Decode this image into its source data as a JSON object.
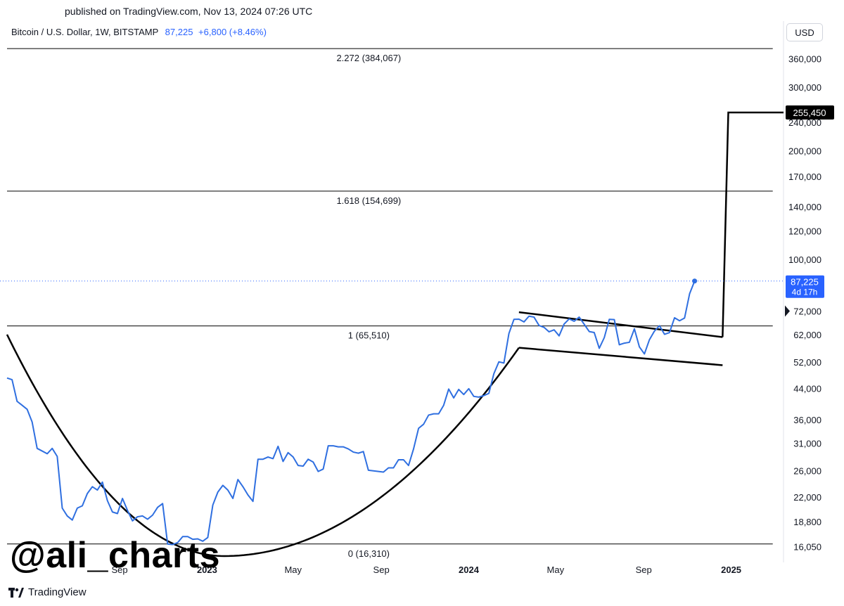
{
  "header": {
    "published": "published on TradingView.com, Nov 13, 2024 07:26 UTC"
  },
  "legend": {
    "symbol": "Bitcoin / U.S. Dollar, 1W, BITSTAMP",
    "price": "87,225",
    "change": "+6,800 (+8.46%)"
  },
  "currency_label": "USD",
  "watermark": "@ali_charts",
  "footer": {
    "brand": "TradingView"
  },
  "colors": {
    "series": "#2f6fe0",
    "accent": "#2962ff",
    "lines": "#000000"
  },
  "chart_data": {
    "type": "line",
    "y_scale": "log",
    "ylim": [
      14500,
      400000
    ],
    "y_ticks": [
      {
        "value": 360000,
        "label": "360,000"
      },
      {
        "value": 300000,
        "label": "300,000"
      },
      {
        "value": 240000,
        "label": "240,000"
      },
      {
        "value": 200000,
        "label": "200,000"
      },
      {
        "value": 170000,
        "label": "170,000"
      },
      {
        "value": 140000,
        "label": "140,000"
      },
      {
        "value": 120000,
        "label": "120,000"
      },
      {
        "value": 100000,
        "label": "100,000"
      },
      {
        "value": 72000,
        "label": "72,000"
      },
      {
        "value": 62000,
        "label": "62,000"
      },
      {
        "value": 52000,
        "label": "52,000"
      },
      {
        "value": 44000,
        "label": "44,000"
      },
      {
        "value": 36000,
        "label": "36,000"
      },
      {
        "value": 31000,
        "label": "31,000"
      },
      {
        "value": 26000,
        "label": "26,000"
      },
      {
        "value": 22000,
        "label": "22,000"
      },
      {
        "value": 18800,
        "label": "18,800"
      },
      {
        "value": 16050,
        "label": "16,050"
      }
    ],
    "x_range": [
      "2022-03-28",
      "2025-03-15"
    ],
    "x_ticks": [
      {
        "date": "2022-09-01",
        "label": "Sep",
        "bold": false
      },
      {
        "date": "2023-01-01",
        "label": "2023",
        "bold": true
      },
      {
        "date": "2023-05-01",
        "label": "May",
        "bold": false
      },
      {
        "date": "2023-09-01",
        "label": "Sep",
        "bold": false
      },
      {
        "date": "2024-01-01",
        "label": "2024",
        "bold": true
      },
      {
        "date": "2024-05-01",
        "label": "May",
        "bold": false
      },
      {
        "date": "2024-09-01",
        "label": "Sep",
        "bold": false
      },
      {
        "date": "2025-01-01",
        "label": "2025",
        "bold": true
      }
    ],
    "series": [
      {
        "values": [
          [
            "2022-03-28",
            47000
          ],
          [
            "2022-04-04",
            46500
          ],
          [
            "2022-04-11",
            40500
          ],
          [
            "2022-04-18",
            39500
          ],
          [
            "2022-04-25",
            38500
          ],
          [
            "2022-05-02",
            35500
          ],
          [
            "2022-05-09",
            30000
          ],
          [
            "2022-05-16",
            29500
          ],
          [
            "2022-05-23",
            29000
          ],
          [
            "2022-05-30",
            30000
          ],
          [
            "2022-06-06",
            28500
          ],
          [
            "2022-06-13",
            20500
          ],
          [
            "2022-06-20",
            19500
          ],
          [
            "2022-06-27",
            19000
          ],
          [
            "2022-07-04",
            20500
          ],
          [
            "2022-07-11",
            20800
          ],
          [
            "2022-07-18",
            22500
          ],
          [
            "2022-07-25",
            23500
          ],
          [
            "2022-08-01",
            23000
          ],
          [
            "2022-08-08",
            24200
          ],
          [
            "2022-08-15",
            21500
          ],
          [
            "2022-08-22",
            20000
          ],
          [
            "2022-08-29",
            19800
          ],
          [
            "2022-09-05",
            21800
          ],
          [
            "2022-09-12",
            20200
          ],
          [
            "2022-09-19",
            18900
          ],
          [
            "2022-09-26",
            19400
          ],
          [
            "2022-10-03",
            19500
          ],
          [
            "2022-10-10",
            19100
          ],
          [
            "2022-10-17",
            19600
          ],
          [
            "2022-10-24",
            20600
          ],
          [
            "2022-10-31",
            21100
          ],
          [
            "2022-11-07",
            16300
          ],
          [
            "2022-11-14",
            16250
          ],
          [
            "2022-11-21",
            16450
          ],
          [
            "2022-11-28",
            17100
          ],
          [
            "2022-12-05",
            17100
          ],
          [
            "2022-12-12",
            16800
          ],
          [
            "2022-12-19",
            16850
          ],
          [
            "2022-12-26",
            16600
          ],
          [
            "2023-01-02",
            17000
          ],
          [
            "2023-01-09",
            20900
          ],
          [
            "2023-01-16",
            22700
          ],
          [
            "2023-01-23",
            23700
          ],
          [
            "2023-01-30",
            23000
          ],
          [
            "2023-02-06",
            21800
          ],
          [
            "2023-02-13",
            24600
          ],
          [
            "2023-02-20",
            23500
          ],
          [
            "2023-02-27",
            22300
          ],
          [
            "2023-03-06",
            21400
          ],
          [
            "2023-03-13",
            28000
          ],
          [
            "2023-03-20",
            28000
          ],
          [
            "2023-03-27",
            28400
          ],
          [
            "2023-04-03",
            28100
          ],
          [
            "2023-04-10",
            30400
          ],
          [
            "2023-04-17",
            27600
          ],
          [
            "2023-04-24",
            29200
          ],
          [
            "2023-05-01",
            28400
          ],
          [
            "2023-05-08",
            26900
          ],
          [
            "2023-05-15",
            26800
          ],
          [
            "2023-05-22",
            28000
          ],
          [
            "2023-05-29",
            27500
          ],
          [
            "2023-06-05",
            25900
          ],
          [
            "2023-06-12",
            26300
          ],
          [
            "2023-06-19",
            30500
          ],
          [
            "2023-06-26",
            30500
          ],
          [
            "2023-07-03",
            30300
          ],
          [
            "2023-07-10",
            30300
          ],
          [
            "2023-07-17",
            29900
          ],
          [
            "2023-07-24",
            29300
          ],
          [
            "2023-07-31",
            29100
          ],
          [
            "2023-08-07",
            29400
          ],
          [
            "2023-08-14",
            26100
          ],
          [
            "2023-08-21",
            26000
          ],
          [
            "2023-08-28",
            25900
          ],
          [
            "2023-09-04",
            25800
          ],
          [
            "2023-09-11",
            26500
          ],
          [
            "2023-09-18",
            26500
          ],
          [
            "2023-09-25",
            27900
          ],
          [
            "2023-10-02",
            27900
          ],
          [
            "2023-10-09",
            26900
          ],
          [
            "2023-10-16",
            29900
          ],
          [
            "2023-10-23",
            34100
          ],
          [
            "2023-10-30",
            35000
          ],
          [
            "2023-11-06",
            37100
          ],
          [
            "2023-11-13",
            37400
          ],
          [
            "2023-11-20",
            37400
          ],
          [
            "2023-11-27",
            39500
          ],
          [
            "2023-12-04",
            43800
          ],
          [
            "2023-12-11",
            41400
          ],
          [
            "2023-12-18",
            43700
          ],
          [
            "2023-12-25",
            42300
          ],
          [
            "2024-01-01",
            43900
          ],
          [
            "2024-01-08",
            41800
          ],
          [
            "2024-01-15",
            41600
          ],
          [
            "2024-01-22",
            42000
          ],
          [
            "2024-01-29",
            42600
          ],
          [
            "2024-02-05",
            48300
          ],
          [
            "2024-02-12",
            52100
          ],
          [
            "2024-02-19",
            51700
          ],
          [
            "2024-02-26",
            62400
          ],
          [
            "2024-03-04",
            68300
          ],
          [
            "2024-03-11",
            68400
          ],
          [
            "2024-03-18",
            67200
          ],
          [
            "2024-03-25",
            69700
          ],
          [
            "2024-04-01",
            69300
          ],
          [
            "2024-04-08",
            65700
          ],
          [
            "2024-04-15",
            64900
          ],
          [
            "2024-04-22",
            63100
          ],
          [
            "2024-04-29",
            63900
          ],
          [
            "2024-05-06",
            61500
          ],
          [
            "2024-05-13",
            66300
          ],
          [
            "2024-05-20",
            68500
          ],
          [
            "2024-05-27",
            67500
          ],
          [
            "2024-06-03",
            69300
          ],
          [
            "2024-06-10",
            66200
          ],
          [
            "2024-06-17",
            63200
          ],
          [
            "2024-06-24",
            62800
          ],
          [
            "2024-07-01",
            56800
          ],
          [
            "2024-07-08",
            60800
          ],
          [
            "2024-07-15",
            68300
          ],
          [
            "2024-07-22",
            68200
          ],
          [
            "2024-07-29",
            58100
          ],
          [
            "2024-08-05",
            58700
          ],
          [
            "2024-08-12",
            59000
          ],
          [
            "2024-08-19",
            64300
          ],
          [
            "2024-08-26",
            57300
          ],
          [
            "2024-09-02",
            54800
          ],
          [
            "2024-09-09",
            60000
          ],
          [
            "2024-09-16",
            63400
          ],
          [
            "2024-09-23",
            65600
          ],
          [
            "2024-09-30",
            62100
          ],
          [
            "2024-10-07",
            62800
          ],
          [
            "2024-10-14",
            69000
          ],
          [
            "2024-10-21",
            67700
          ],
          [
            "2024-10-28",
            68900
          ],
          [
            "2024-11-04",
            80400
          ],
          [
            "2024-11-11",
            87225
          ]
        ]
      }
    ],
    "last_point": {
      "date": "2024-11-11",
      "value": 87225
    },
    "current_price_label": {
      "value": "87,225",
      "countdown": "4d 17h"
    },
    "fib_levels": [
      {
        "value": 384067,
        "label": "2.272 (384,067)"
      },
      {
        "value": 154699,
        "label": "1.618 (154,699)"
      },
      {
        "value": 65510,
        "label": "1 (65,510)"
      },
      {
        "value": 16310,
        "label": "0 (16,310)"
      }
    ],
    "fib_x_range": [
      "2022-03-28",
      "2025-02-28"
    ],
    "target": {
      "value": 255450,
      "label": "255,450"
    },
    "cup": {
      "left": {
        "date": "2022-03-28",
        "value": 62000
      },
      "bottom": {
        "date": "2023-01-25",
        "value": 15100
      },
      "right": {
        "date": "2024-03-11",
        "value": 57000
      }
    },
    "handle": {
      "upper": [
        {
          "date": "2024-03-11",
          "value": 71500
        },
        {
          "date": "2024-12-20",
          "value": 61000
        }
      ],
      "lower": [
        {
          "date": "2024-03-11",
          "value": 57000
        },
        {
          "date": "2024-12-20",
          "value": 51000
        }
      ]
    },
    "projection": [
      {
        "date": "2024-12-20",
        "value": 61000
      },
      {
        "date": "2024-12-28",
        "value": 255450
      },
      {
        "date": "2025-03-15",
        "value": 255450
      }
    ]
  }
}
